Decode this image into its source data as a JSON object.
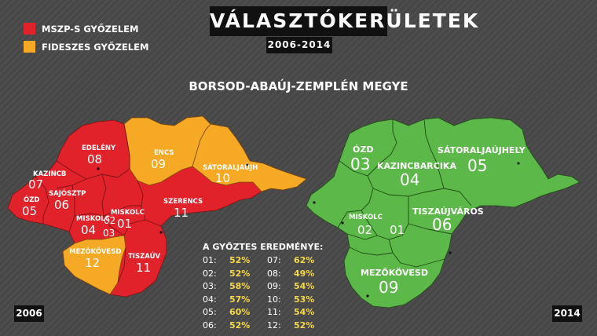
{
  "title": "VÁLASZTÓKERÜLETEK",
  "subtitle": "2006-2014",
  "legend": [
    {
      "label": "MSZP-S GYŐZELEM",
      "color": "#e2222a"
    },
    {
      "label": "FIDESZES GYŐZELEM",
      "color": "#f6a925"
    }
  ],
  "region_title": "BORSOD-ABAÚJ-ZEMPLÉN MEGYE",
  "colors": {
    "mszp": "#e2222a",
    "fidesz": "#f6a925",
    "map2014": "#5cb848"
  },
  "map_2006": {
    "year": "2006",
    "districts": [
      {
        "name": "EDELÉNY",
        "num": "08",
        "winner": "mszp"
      },
      {
        "name": "ENCS",
        "num": "09",
        "winner": "fidesz"
      },
      {
        "name": "SÁTORALJAÚJH",
        "num": "10",
        "winner": "fidesz"
      },
      {
        "name": "KAZINCB",
        "num": "07",
        "winner": "mszp"
      },
      {
        "name": "SAJÓSZTP",
        "num": "06",
        "winner": "mszp"
      },
      {
        "name": "ÓZD",
        "num": "05",
        "winner": "mszp"
      },
      {
        "name": "MISKOLC",
        "num": "04",
        "winner": "mszp"
      },
      {
        "name": "MISKOLC",
        "num": "01",
        "winner": "mszp"
      },
      {
        "name": "",
        "num": "02",
        "winner": "mszp"
      },
      {
        "name": "",
        "num": "03",
        "winner": "mszp"
      },
      {
        "name": "SZERENCS",
        "num": "11",
        "winner": "mszp"
      },
      {
        "name": "MEZŐKÖVESD",
        "num": "12",
        "winner": "fidesz"
      },
      {
        "name": "TISZAÚV",
        "num": "11",
        "winner": "mszp"
      }
    ]
  },
  "map_2014": {
    "year": "2014",
    "districts": [
      {
        "name": "ÓZD",
        "num": "03"
      },
      {
        "name": "KAZINCBARCIKA",
        "num": "04"
      },
      {
        "name": "SÁTORALJAÚJHELY",
        "num": "05"
      },
      {
        "name": "MISKOLC",
        "num": "02"
      },
      {
        "name": "",
        "num": "01"
      },
      {
        "name": "TISZAÚJVÁROS",
        "num": "06"
      },
      {
        "name": "MEZŐKÖVESD",
        "num": "09"
      }
    ]
  },
  "results": {
    "title": "A GYŐZTES EREDMÉNYE:",
    "rows": [
      {
        "a": "01:",
        "av": "52%",
        "b": "07:",
        "bv": "62%"
      },
      {
        "a": "02:",
        "av": "52%",
        "b": "08:",
        "bv": "49%"
      },
      {
        "a": "03:",
        "av": "58%",
        "b": "09:",
        "bv": "54%"
      },
      {
        "a": "04:",
        "av": "57%",
        "b": "10:",
        "bv": "53%"
      },
      {
        "a": "05:",
        "av": "60%",
        "b": "11:",
        "bv": "54%"
      },
      {
        "a": "06:",
        "av": "52%",
        "b": "12:",
        "bv": "52%"
      }
    ]
  }
}
